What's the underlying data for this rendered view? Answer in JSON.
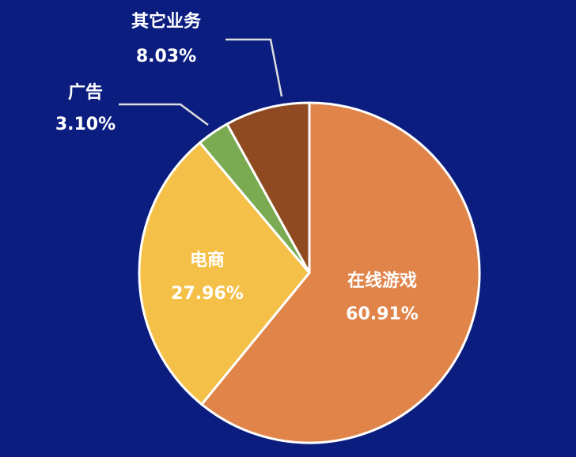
{
  "chart_data": {
    "type": "pie",
    "categories": [
      "在线游戏",
      "电商",
      "广告",
      "其它业务"
    ],
    "values": [
      60.91,
      27.96,
      3.1,
      8.03
    ],
    "value_labels": [
      "60.91%",
      "27.96%",
      "3.10%",
      "8.03%"
    ],
    "colors": [
      "#e0844a",
      "#f4c047",
      "#7aab52",
      "#8f4a21"
    ]
  }
}
